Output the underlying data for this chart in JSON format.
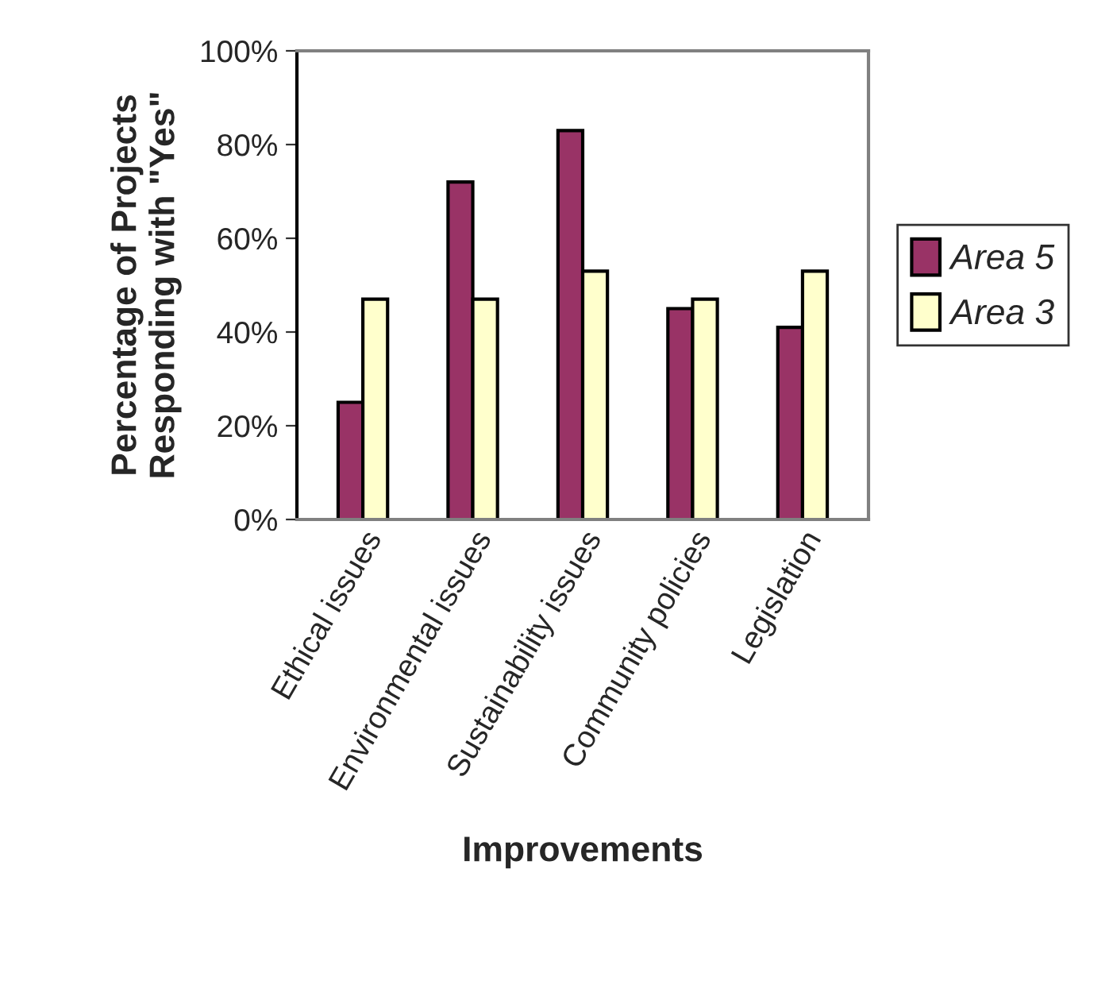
{
  "chart_data": {
    "type": "bar",
    "xlabel": "Improvements",
    "ylabel": "Percentage of Projects\nResponding with \"Yes\"",
    "categories": [
      "Ethical issues",
      "Environmental issues",
      "Sustainability issues",
      "Community policies",
      "Legislation"
    ],
    "series": [
      {
        "name": "Area 5",
        "color": "#993366",
        "values": [
          25,
          72,
          83,
          45,
          41
        ]
      },
      {
        "name": "Area 3",
        "color": "#ffffcc",
        "values": [
          47,
          47,
          53,
          47,
          53
        ]
      }
    ],
    "ylim": [
      0,
      100
    ],
    "yticks": [
      {
        "value": 0,
        "label": "0%"
      },
      {
        "value": 20,
        "label": "20%"
      },
      {
        "value": 40,
        "label": "40%"
      },
      {
        "value": 60,
        "label": "60%"
      },
      {
        "value": 80,
        "label": "80%"
      },
      {
        "value": 100,
        "label": "100%"
      }
    ],
    "grid": false,
    "legend": "right"
  }
}
